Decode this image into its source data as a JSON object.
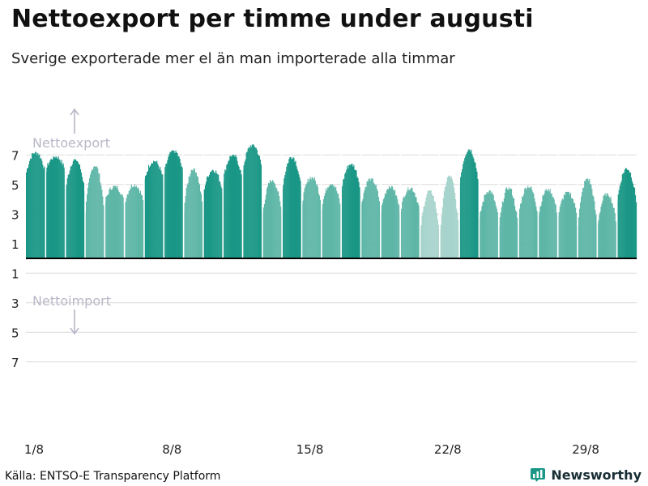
{
  "title": "Nettoexport per timme under augusti",
  "subtitle": "Sverige exporterade mer el än man importerade alla timmar",
  "source": "Källa: ENTSO-E Transparency Platform",
  "brand": "Newsworthy",
  "colors": {
    "bar_dark": "#1a9786",
    "bar_mid": "#5eb6a7",
    "bar_light": "#a7d4cc",
    "grid": "#dcdcdc",
    "annotation": "#b8b8c8",
    "zero_line": "#000000"
  },
  "chart_data": {
    "type": "bar",
    "title": "Nettoexport per timme under augusti",
    "annotations": {
      "export": "Nettoexport",
      "import": "Nettoimport"
    },
    "y_tick_labels_above": [
      "7",
      "5",
      "3",
      "1"
    ],
    "y_tick_labels_below": [
      "1",
      "3",
      "5",
      "7"
    ],
    "y_tick_values": [
      7,
      5,
      3,
      1,
      -1,
      -3,
      -5,
      -7
    ],
    "ylim": [
      -8,
      8
    ],
    "grid": true,
    "x_tick_labels": [
      "1/8",
      "8/8",
      "15/8",
      "22/8",
      "29/8"
    ],
    "x_tick_days": [
      1,
      8,
      15,
      22,
      29
    ],
    "days_in_month": 31,
    "hours_per_day": 24,
    "daily_peak_values": [
      7.2,
      6.9,
      6.7,
      6.3,
      4.9,
      5.0,
      6.6,
      7.3,
      6.1,
      6.0,
      7.0,
      7.7,
      5.3,
      6.9,
      5.5,
      5.1,
      6.4,
      5.4,
      4.9,
      4.8,
      4.6,
      5.6,
      7.4,
      4.6,
      4.8,
      4.9,
      4.7,
      4.5,
      5.4,
      4.4,
      6.1
    ],
    "daily_min_values": [
      5.5,
      5.8,
      4.2,
      2.5,
      3.6,
      3.5,
      5.0,
      5.4,
      2.7,
      4.2,
      5.0,
      5.7,
      2.6,
      4.2,
      3.4,
      3.1,
      4.3,
      3.2,
      2.8,
      2.9,
      1.2,
      0.9,
      4.6,
      2.2,
      1.6,
      2.6,
      2.5,
      2.5,
      1.6,
      1.8,
      3.4
    ],
    "daily_shade": [
      "dark",
      "dark",
      "dark",
      "mid",
      "mid",
      "mid",
      "dark",
      "dark",
      "mid",
      "dark",
      "dark",
      "dark",
      "mid",
      "dark",
      "mid",
      "mid",
      "dark",
      "mid",
      "mid",
      "mid",
      "light",
      "light",
      "dark",
      "mid",
      "mid",
      "mid",
      "mid",
      "mid",
      "mid",
      "mid",
      "dark"
    ]
  }
}
